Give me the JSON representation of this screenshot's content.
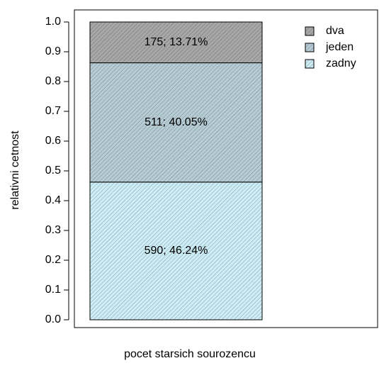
{
  "chart_data": {
    "type": "stacked_bar",
    "xlabel": "pocet starsich sourozencu",
    "ylabel": "relativni cetnost",
    "categories": [
      null
    ],
    "series": [
      {
        "name": "zadny",
        "color": "#cdeef6",
        "values": [
          0.4624
        ],
        "value_labels": [
          "590; 46.24%"
        ]
      },
      {
        "name": "jeden",
        "color": "#b7cdd6",
        "values": [
          0.4005
        ],
        "value_labels": [
          "511; 40.05%"
        ]
      },
      {
        "name": "dva",
        "color": "#a8a8a8",
        "values": [
          0.1371
        ],
        "value_labels": [
          "175; 13.71%"
        ]
      }
    ],
    "ylim": [
      0,
      1
    ],
    "yticks": [
      {
        "value": 0,
        "label": "0.0"
      },
      0.1,
      0.2,
      0.3,
      0.4,
      0.5,
      0.6,
      0.7,
      0.8,
      0.9,
      {
        "value": 1,
        "label": "1.0"
      }
    ],
    "legend": "top-right"
  }
}
